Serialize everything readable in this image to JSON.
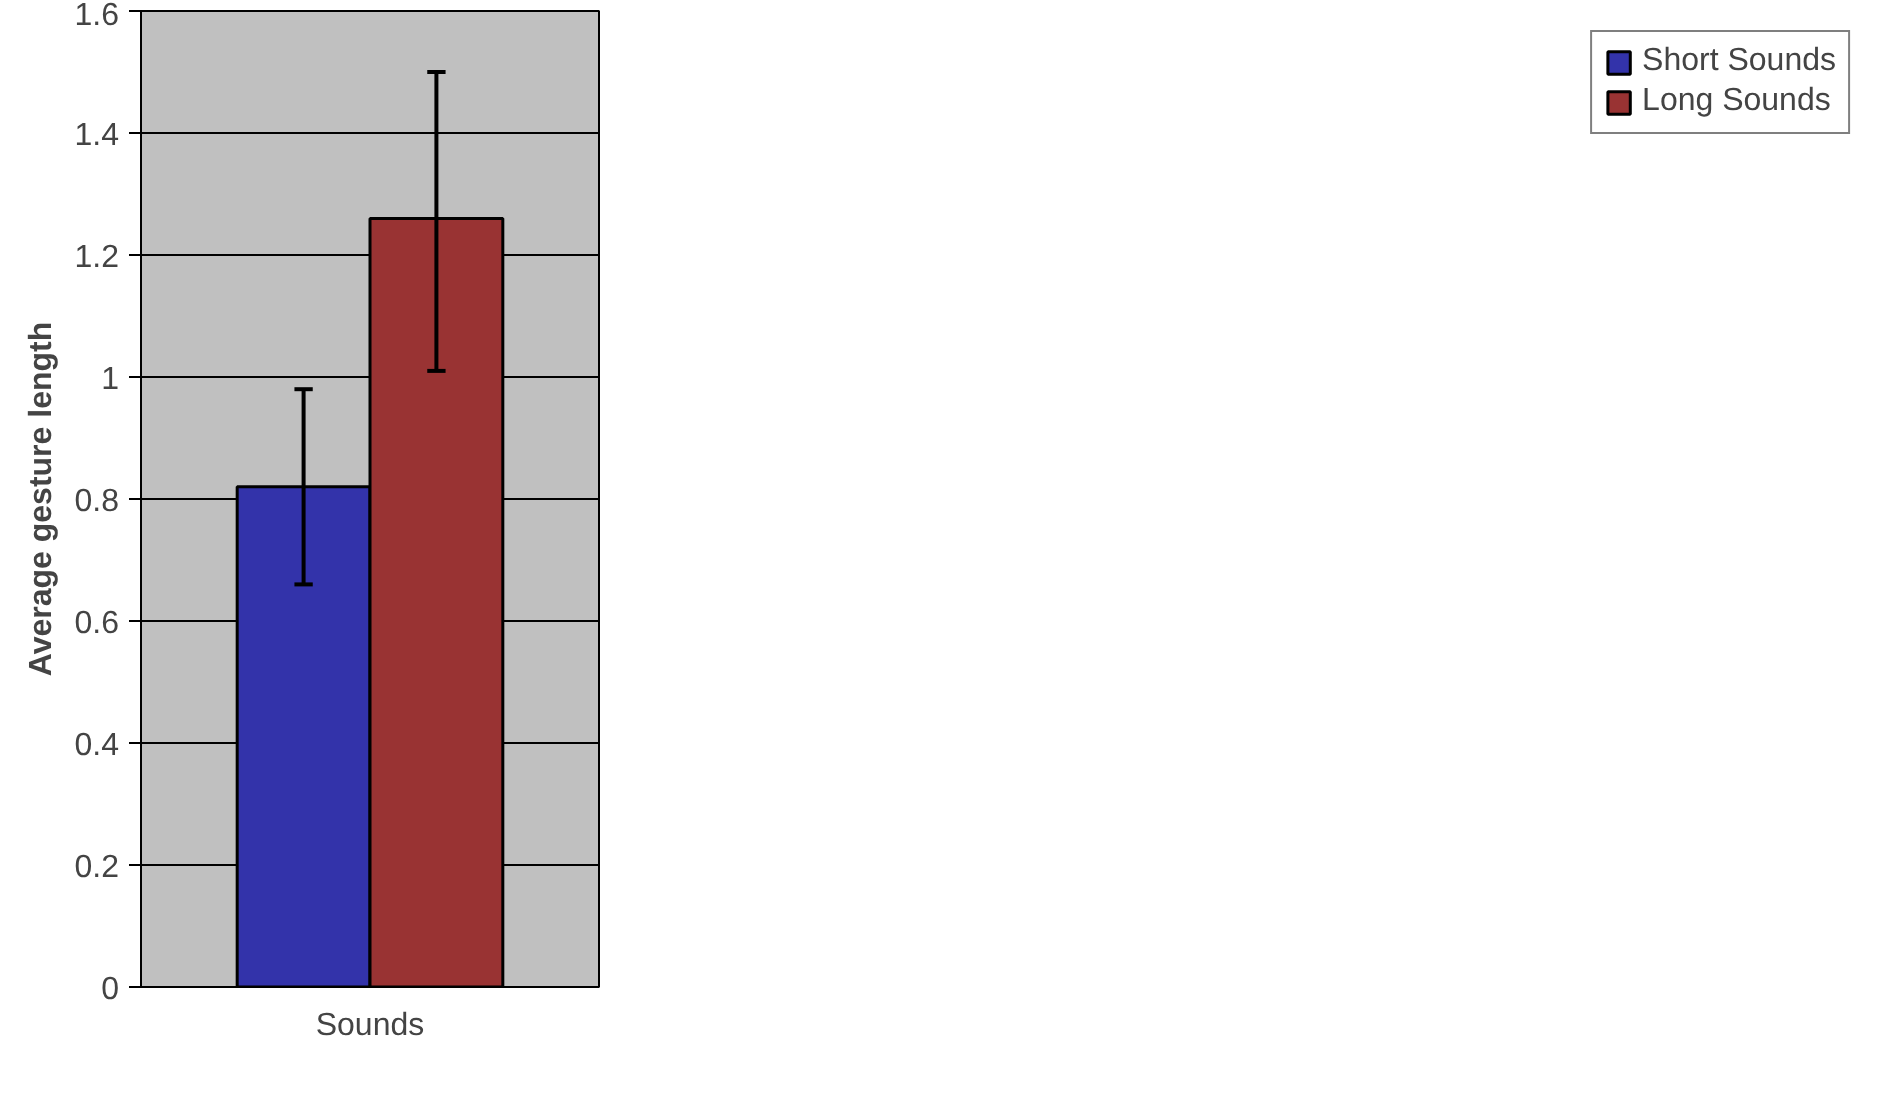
{
  "chart_data": {
    "type": "bar",
    "xlabel": "Sounds",
    "ylabel": "Average gesture length",
    "categories": [
      null
    ],
    "series": [
      {
        "name": "Short Sounds",
        "color": "#3333aa",
        "values": [
          0.82
        ],
        "errors": [
          [
            0.66,
            0.98
          ]
        ]
      },
      {
        "name": "Long Sounds",
        "color": "#993333",
        "values": [
          1.26
        ],
        "errors": [
          [
            1.01,
            1.5
          ]
        ]
      }
    ],
    "ylim": [
      0,
      1.6
    ],
    "yticks": [
      0,
      0.2,
      0.4,
      0.6,
      0.8,
      1,
      1.2,
      1.4,
      1.6
    ],
    "grid": "y",
    "legend": "right"
  }
}
